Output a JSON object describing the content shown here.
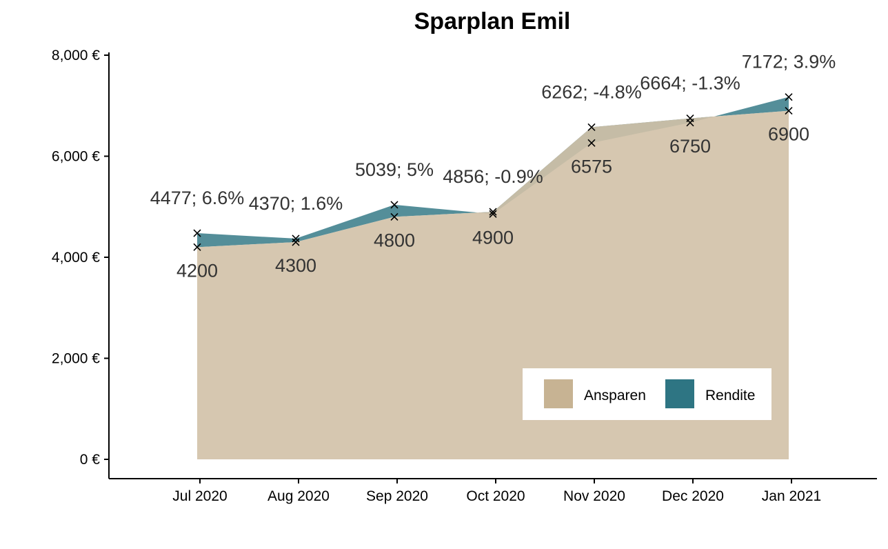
{
  "chart_data": {
    "type": "area",
    "title": "Sparplan Emil",
    "xlabel": "",
    "ylabel": "",
    "categories": [
      "Jul 2020",
      "Aug 2020",
      "Sep 2020",
      "Oct 2020",
      "Nov 2020",
      "Dec 2020",
      "Jan 2021"
    ],
    "y_ticks": [
      "0 €",
      "2,000 €",
      "4,000 €",
      "6,000 €",
      "8,000 €"
    ],
    "ylim": [
      0,
      8000
    ],
    "series": [
      {
        "name": "Ansparen",
        "values": [
          4200,
          4300,
          4800,
          4900,
          6575,
          6750,
          6900
        ]
      },
      {
        "name": "Rendite",
        "values": [
          4477,
          4370,
          5039,
          4856,
          6262,
          6664,
          7172
        ]
      }
    ],
    "bottom_labels": [
      "4200",
      "4300",
      "4800",
      "4900",
      "6575",
      "6750",
      "6900"
    ],
    "top_labels": [
      "4477; 6.6%",
      "4370; 1.6%",
      "5039; 5%",
      "4856; -0.9%",
      "6262; -4.8%",
      "6664; -1.3%",
      "7172; 3.9%"
    ],
    "legend": {
      "placement": "bottom-right",
      "entries": [
        "Ansparen",
        "Rendite"
      ]
    },
    "grid": false
  },
  "colors": {
    "ansparen_fill": "#D1C1A7",
    "rendite_fill": "#2E7583",
    "legend_ansparen": "#C7B393",
    "legend_rendite": "#2E7583"
  }
}
